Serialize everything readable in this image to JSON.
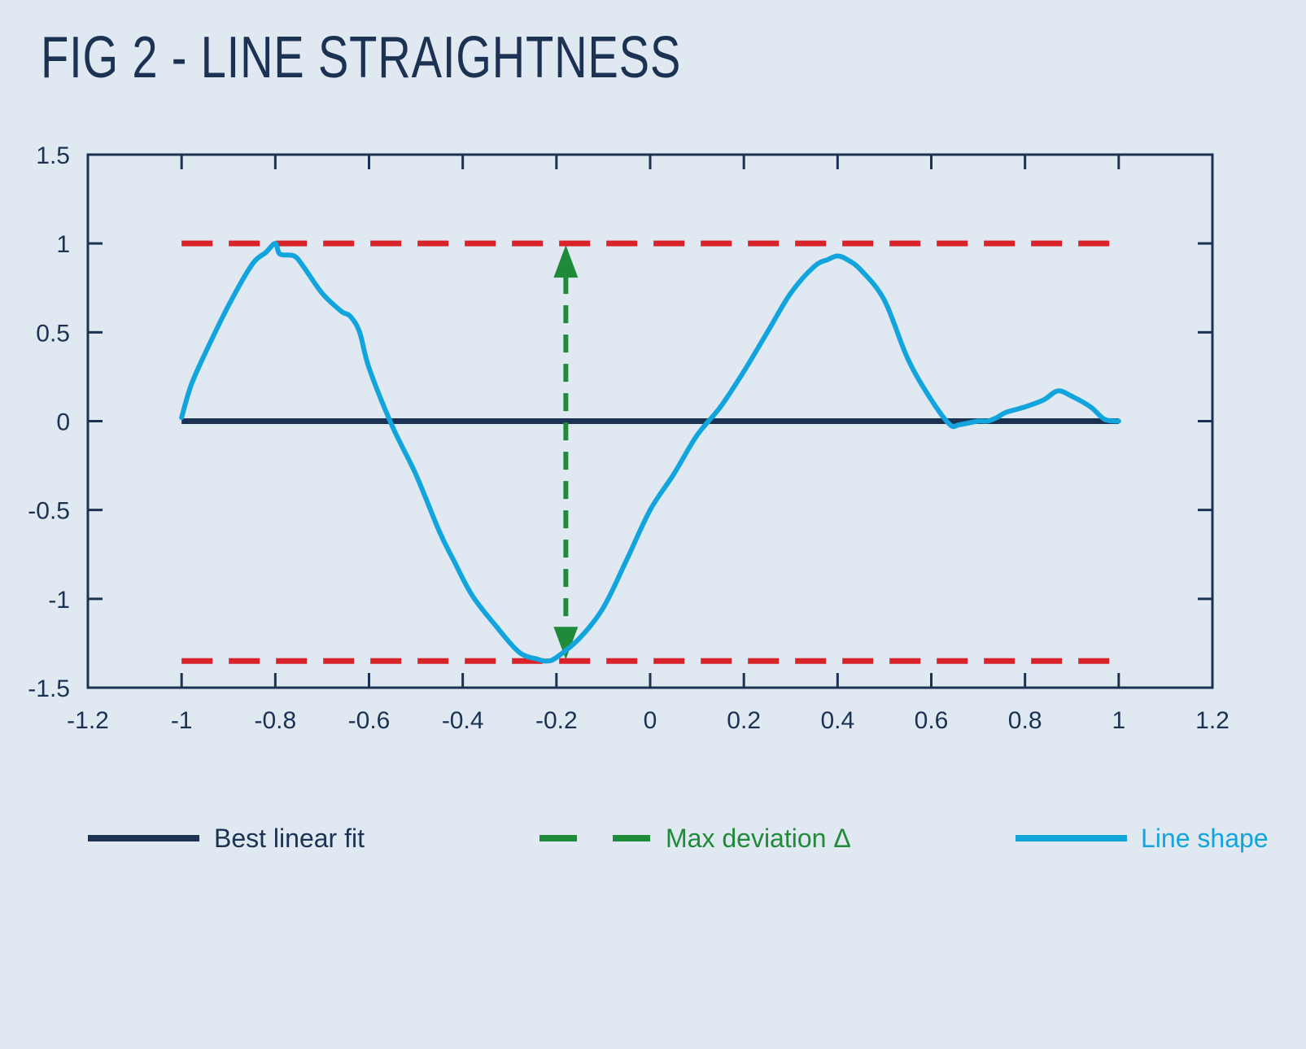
{
  "title": "FIG 2 - LINE STRAIGHTNESS",
  "colors": {
    "background": "#e0e8f2",
    "axis": "#1b3252",
    "fit": "#1b3252",
    "shape": "#12a4dc",
    "deviation": "#1f8a3a",
    "bounds": "#d8232a"
  },
  "chart_data": {
    "type": "line",
    "title": "FIG 2 - LINE STRAIGHTNESS",
    "xlabel": "",
    "ylabel": "",
    "xlim": [
      -1.2,
      1.2
    ],
    "ylim": [
      -1.5,
      1.5
    ],
    "xticks": [
      "-1.2",
      "-1",
      "-0.8",
      "-0.6",
      "-0.4",
      "-0.2",
      "0",
      "0.2",
      "0.4",
      "0.6",
      "0.8",
      "1",
      "1.2"
    ],
    "yticks": [
      "-1.5",
      "-1",
      "-0.5",
      "0",
      "0.5",
      "1",
      "1.5"
    ],
    "grid": false,
    "legend": {
      "placement": "bottom"
    },
    "series": [
      {
        "name": "Best linear fit",
        "x": [
          -1,
          1
        ],
        "y": [
          0,
          0
        ]
      },
      {
        "name": "Line shape",
        "x": [
          -1.0,
          -0.98,
          -0.95,
          -0.9,
          -0.85,
          -0.82,
          -0.8,
          -0.79,
          -0.76,
          -0.74,
          -0.7,
          -0.66,
          -0.64,
          -0.62,
          -0.6,
          -0.55,
          -0.5,
          -0.45,
          -0.42,
          -0.38,
          -0.33,
          -0.28,
          -0.24,
          -0.22,
          -0.2,
          -0.15,
          -0.1,
          -0.05,
          0.0,
          0.05,
          0.1,
          0.15,
          0.2,
          0.25,
          0.3,
          0.35,
          0.38,
          0.4,
          0.42,
          0.45,
          0.5,
          0.55,
          0.6,
          0.64,
          0.66,
          0.7,
          0.72,
          0.74,
          0.76,
          0.8,
          0.84,
          0.87,
          0.9,
          0.94,
          0.97,
          1.0
        ],
        "y": [
          0.02,
          0.2,
          0.38,
          0.65,
          0.88,
          0.95,
          1.0,
          0.94,
          0.93,
          0.87,
          0.72,
          0.62,
          0.59,
          0.5,
          0.3,
          -0.03,
          -0.3,
          -0.62,
          -0.78,
          -0.98,
          -1.15,
          -1.3,
          -1.34,
          -1.35,
          -1.33,
          -1.22,
          -1.05,
          -0.78,
          -0.5,
          -0.3,
          -0.08,
          0.08,
          0.28,
          0.5,
          0.72,
          0.87,
          0.91,
          0.93,
          0.91,
          0.85,
          0.68,
          0.35,
          0.12,
          -0.02,
          -0.02,
          0.0,
          0.0,
          0.02,
          0.05,
          0.08,
          0.12,
          0.17,
          0.14,
          0.08,
          0.01,
          0.0
        ]
      }
    ],
    "bounds": [
      1,
      -1.35
    ],
    "max_deviation": {
      "x": -0.18,
      "y_top": 1,
      "y_bottom": -1.35
    },
    "legend_entries": [
      {
        "label": "Best linear fit",
        "style": "solid"
      },
      {
        "label": "Max deviation Δ",
        "style": "dashed"
      },
      {
        "label": "Line shape",
        "style": "solid"
      }
    ]
  }
}
